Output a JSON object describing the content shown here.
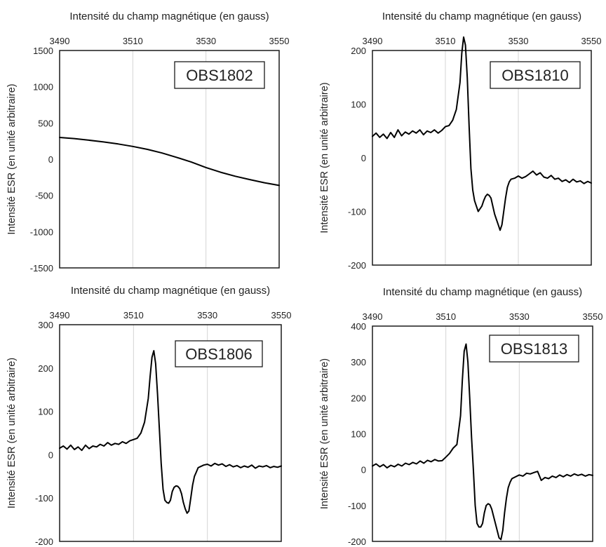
{
  "colors": {
    "line": "#000000",
    "grid": "#d4d4d4",
    "frame": "#1a1a1a",
    "text": "#222222"
  },
  "chart_data": [
    {
      "type": "line",
      "title": "OBS1802",
      "xlabel": "Intensité du champ magnétique (en gauss)",
      "ylabel": "Intensité ESR (en unité arbitraire)",
      "xlim": [
        3490,
        3550
      ],
      "ylim": [
        -1500,
        1500
      ],
      "xticks": [
        3490,
        3510,
        3530,
        3550
      ],
      "yticks": [
        1500,
        1000,
        500,
        0,
        -500,
        -1000,
        -1500
      ],
      "x_axis_position": "top",
      "grid": "vertical",
      "series": [
        {
          "x": [
            3490,
            3494,
            3498,
            3502,
            3506,
            3510,
            3514,
            3518,
            3522,
            3526,
            3530,
            3534,
            3538,
            3542,
            3546,
            3550
          ],
          "y": [
            300,
            285,
            262,
            238,
            210,
            176,
            135,
            85,
            25,
            -40,
            -115,
            -180,
            -235,
            -282,
            -325,
            -362
          ]
        }
      ]
    },
    {
      "type": "line",
      "title": "OBS1810",
      "xlabel": "Intensité du champ magnétique (en gauss)",
      "ylabel": "Intensité ESR (en unité arbitraire)",
      "xlim": [
        3490,
        3550
      ],
      "ylim": [
        -200,
        200
      ],
      "xticks": [
        3490,
        3510,
        3530,
        3550
      ],
      "yticks": [
        200,
        100,
        0,
        -100,
        -200
      ],
      "x_axis_position": "top",
      "grid": "vertical",
      "series": [
        {
          "x": [
            3490,
            3491,
            3492,
            3493,
            3494,
            3495,
            3496,
            3497,
            3498,
            3499,
            3500,
            3501,
            3502,
            3503,
            3504,
            3505,
            3506,
            3507,
            3508,
            3509,
            3510,
            3511,
            3512,
            3513,
            3514,
            3514.5,
            3515,
            3515.5,
            3516,
            3516.5,
            3517,
            3517.5,
            3518,
            3518.5,
            3519,
            3519.5,
            3520,
            3520.5,
            3521,
            3521.5,
            3522,
            3522.5,
            3523,
            3523.5,
            3524,
            3524.5,
            3525,
            3525.5,
            3526,
            3526.5,
            3527,
            3527.5,
            3528,
            3529,
            3530,
            3531,
            3532,
            3533,
            3534,
            3535,
            3536,
            3537,
            3538,
            3539,
            3540,
            3541,
            3542,
            3543,
            3544,
            3545,
            3546,
            3547,
            3548,
            3549,
            3550
          ],
          "y": [
            40,
            46,
            38,
            44,
            36,
            47,
            38,
            52,
            41,
            48,
            44,
            50,
            46,
            52,
            43,
            50,
            47,
            52,
            46,
            51,
            58,
            60,
            70,
            90,
            140,
            195,
            225,
            210,
            150,
            60,
            -20,
            -60,
            -80,
            -90,
            -100,
            -95,
            -90,
            -80,
            -72,
            -68,
            -70,
            -75,
            -90,
            -105,
            -115,
            -125,
            -135,
            -125,
            -100,
            -75,
            -55,
            -45,
            -40,
            -38,
            -34,
            -38,
            -35,
            -30,
            -25,
            -32,
            -28,
            -36,
            -38,
            -33,
            -40,
            -38,
            -44,
            -41,
            -46,
            -40,
            -45,
            -43,
            -48,
            -44,
            -47
          ]
        }
      ]
    },
    {
      "type": "line",
      "title": "OBS1806",
      "xlabel": "Intensité du champ magnétique (en gauss)",
      "ylabel": "Intensité ESR (en unité arbitraire)",
      "xlim": [
        3490,
        3550
      ],
      "ylim": [
        -200,
        300
      ],
      "xticks": [
        3490,
        3510,
        3530,
        3550
      ],
      "yticks": [
        300,
        200,
        100,
        0,
        -100,
        -200
      ],
      "x_axis_position": "top",
      "grid": "vertical",
      "series": [
        {
          "x": [
            3490,
            3491,
            3492,
            3493,
            3494,
            3495,
            3496,
            3497,
            3498,
            3499,
            3500,
            3501,
            3502,
            3503,
            3504,
            3505,
            3506,
            3507,
            3508,
            3509,
            3510,
            3511,
            3512,
            3513,
            3514,
            3514.5,
            3515,
            3515.5,
            3516,
            3516.5,
            3517,
            3517.5,
            3518,
            3518.5,
            3519,
            3519.5,
            3520,
            3520.5,
            3521,
            3521.5,
            3522,
            3522.5,
            3523,
            3523.5,
            3524,
            3524.5,
            3525,
            3525.5,
            3526,
            3526.5,
            3527,
            3527.5,
            3528,
            3529,
            3530,
            3531,
            3532,
            3533,
            3534,
            3535,
            3536,
            3537,
            3538,
            3539,
            3540,
            3541,
            3542,
            3543,
            3544,
            3545,
            3546,
            3547,
            3548,
            3549,
            3550
          ],
          "y": [
            15,
            20,
            13,
            22,
            12,
            18,
            10,
            22,
            14,
            20,
            18,
            24,
            20,
            28,
            22,
            26,
            24,
            30,
            26,
            32,
            35,
            38,
            50,
            75,
            130,
            180,
            225,
            240,
            210,
            140,
            60,
            -20,
            -80,
            -105,
            -110,
            -112,
            -105,
            -85,
            -75,
            -72,
            -73,
            -78,
            -90,
            -110,
            -125,
            -135,
            -130,
            -100,
            -70,
            -50,
            -40,
            -30,
            -28,
            -24,
            -22,
            -26,
            -20,
            -24,
            -21,
            -27,
            -23,
            -28,
            -25,
            -30,
            -26,
            -29,
            -24,
            -31,
            -26,
            -28,
            -25,
            -30,
            -27,
            -29,
            -26
          ]
        }
      ]
    },
    {
      "type": "line",
      "title": "OBS1813",
      "xlabel": "Intensité du champ magnétique (en gauss)",
      "ylabel": "Intensité ESR (en unité arbitraire)",
      "xlim": [
        3490,
        3550
      ],
      "ylim": [
        -200,
        400
      ],
      "xticks": [
        3490,
        3510,
        3530,
        3550
      ],
      "yticks": [
        400,
        300,
        200,
        100,
        0,
        -100,
        -200
      ],
      "x_axis_position": "top",
      "grid": "vertical",
      "series": [
        {
          "x": [
            3490,
            3491,
            3492,
            3493,
            3494,
            3495,
            3496,
            3497,
            3498,
            3499,
            3500,
            3501,
            3502,
            3503,
            3504,
            3505,
            3506,
            3507,
            3508,
            3509,
            3510,
            3511,
            3512,
            3513,
            3514,
            3514.5,
            3515,
            3515.5,
            3516,
            3516.5,
            3517,
            3517.5,
            3518,
            3518.5,
            3519,
            3519.5,
            3520,
            3520.5,
            3521,
            3521.5,
            3522,
            3522.5,
            3523,
            3523.5,
            3524,
            3524.5,
            3525,
            3525.5,
            3526,
            3526.5,
            3527,
            3527.5,
            3528,
            3529,
            3530,
            3531,
            3532,
            3533,
            3534,
            3535,
            3536,
            3537,
            3538,
            3539,
            3540,
            3541,
            3542,
            3543,
            3544,
            3545,
            3546,
            3547,
            3548,
            3549,
            3550
          ],
          "y": [
            10,
            16,
            8,
            14,
            5,
            12,
            8,
            15,
            10,
            18,
            14,
            20,
            16,
            24,
            18,
            26,
            22,
            28,
            24,
            25,
            35,
            45,
            60,
            70,
            150,
            250,
            330,
            350,
            300,
            200,
            90,
            0,
            -100,
            -150,
            -160,
            -160,
            -150,
            -120,
            -100,
            -95,
            -98,
            -110,
            -130,
            -150,
            -170,
            -190,
            -195,
            -170,
            -120,
            -80,
            -50,
            -35,
            -25,
            -20,
            -15,
            -18,
            -10,
            -12,
            -8,
            -5,
            -30,
            -22,
            -25,
            -18,
            -22,
            -15,
            -20,
            -14,
            -18,
            -12,
            -16,
            -13,
            -18,
            -14,
            -16
          ]
        }
      ]
    }
  ]
}
